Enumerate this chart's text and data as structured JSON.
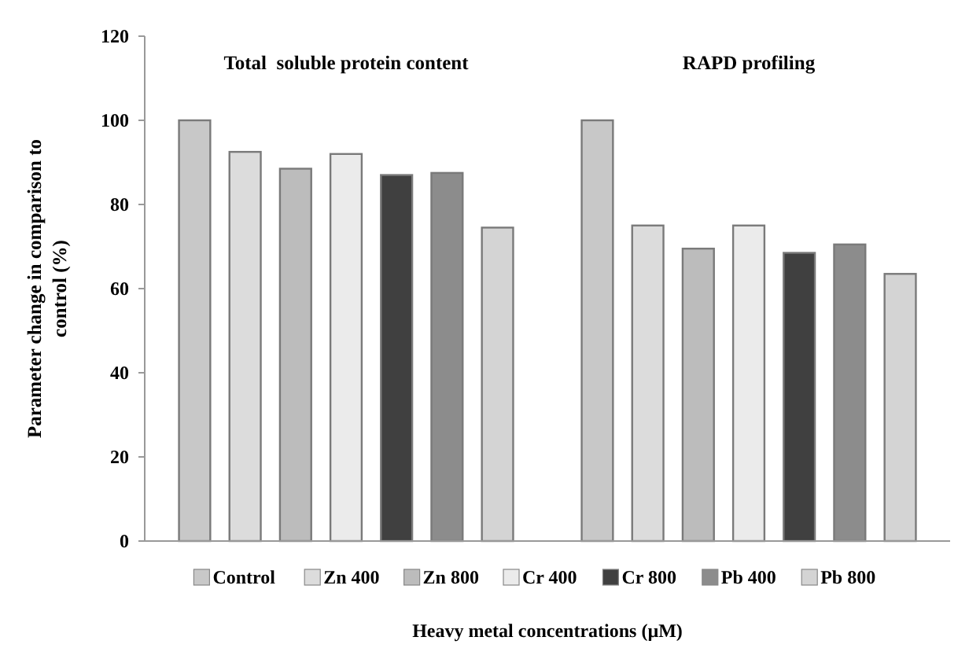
{
  "chart_data": {
    "type": "bar",
    "categories": [
      "Total  soluble protein content",
      "RAPD profiling"
    ],
    "series": [
      {
        "name": "Control",
        "color": "#c8c8c8",
        "values": [
          100,
          100
        ]
      },
      {
        "name": "Zn 400",
        "color": "#dcdcdc",
        "values": [
          92.5,
          75
        ]
      },
      {
        "name": "Zn 800",
        "color": "#bcbcbc",
        "values": [
          88.5,
          69.5
        ]
      },
      {
        "name": "Cr 400",
        "color": "#ebebeb",
        "values": [
          92,
          75
        ]
      },
      {
        "name": "Cr 800",
        "color": "#404040",
        "values": [
          87,
          68.5
        ]
      },
      {
        "name": "Pb 400",
        "color": "#8c8c8c",
        "values": [
          87.5,
          70.5
        ]
      },
      {
        "name": "Pb 800",
        "color": "#d4d4d4",
        "values": [
          74.5,
          63.5
        ]
      }
    ],
    "ylim": [
      0,
      120
    ],
    "yticks": [
      0,
      20,
      40,
      60,
      80,
      100,
      120
    ],
    "ylabel": "Parameter change in comparison to control (%)",
    "xlabel": "Heavy metal concentrations (µM)",
    "legend": "bottom",
    "grid": false
  }
}
